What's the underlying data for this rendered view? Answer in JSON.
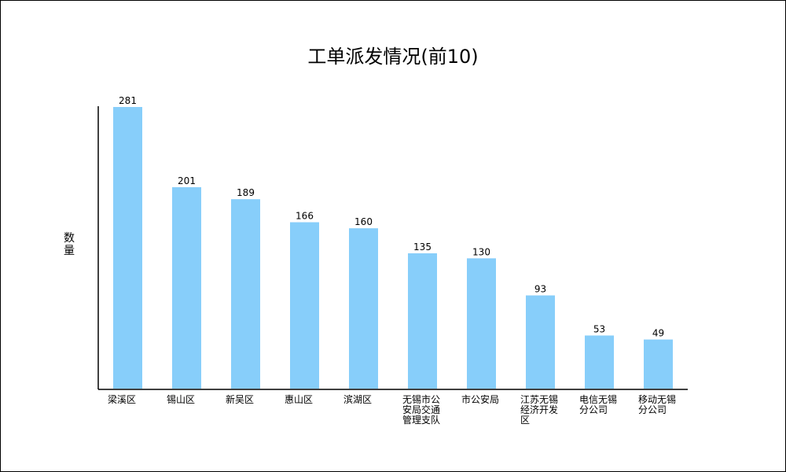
{
  "chart_data": {
    "type": "bar",
    "title": "工单派发情况(前10)",
    "ylabel": "数量",
    "xlabel": "",
    "categories": [
      "梁溪区",
      "锡山区",
      "新吴区",
      "惠山区",
      "滨湖区",
      "无锡市公安局交通管理支队",
      "市公安局",
      "江苏无锡经济开发区",
      "电信无锡分公司",
      "移动无锡分公司"
    ],
    "values": [
      281,
      201,
      189,
      166,
      160,
      135,
      130,
      93,
      53,
      49
    ],
    "ylim": [
      0,
      281
    ],
    "grid": false,
    "bar_color": "#87CEFA"
  }
}
